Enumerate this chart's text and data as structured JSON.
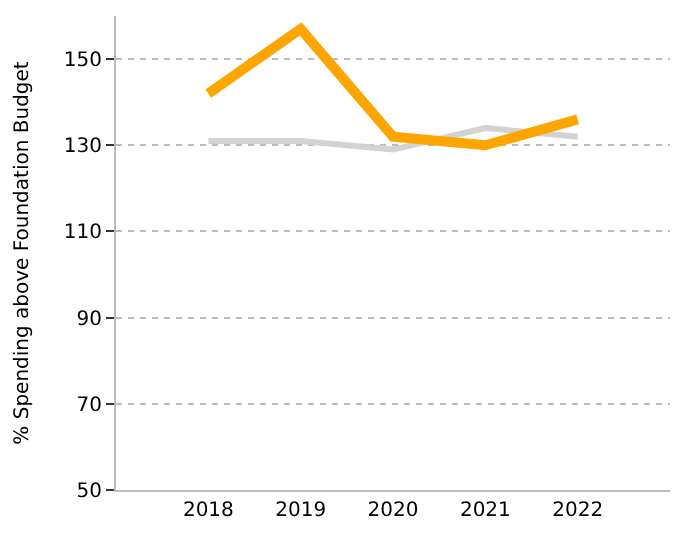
{
  "chart_data": {
    "type": "line",
    "ylabel": "% Spending above Foundation Budget",
    "categories": [
      "2018",
      "2019",
      "2020",
      "2021",
      "2022"
    ],
    "series": [
      {
        "color": "#d3d3d3",
        "values": [
          131,
          131,
          129,
          134,
          132
        ]
      },
      {
        "color": "#ffa500",
        "values": [
          142,
          157,
          132,
          130,
          136
        ]
      }
    ],
    "ylim": [
      50,
      160
    ],
    "yticks": [
      50,
      70,
      90,
      110,
      130,
      150
    ],
    "grid": "y",
    "marker": "none",
    "line_style": "solid"
  }
}
